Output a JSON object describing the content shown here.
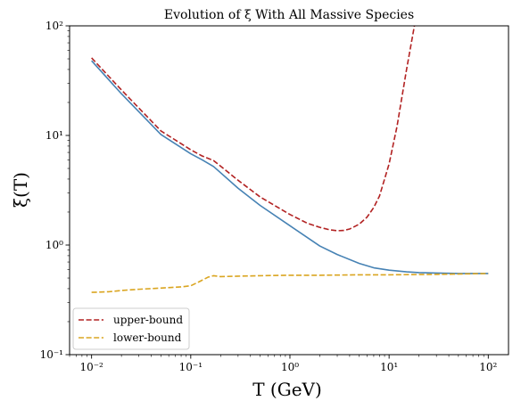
{
  "chart_data": {
    "type": "line",
    "title": "Evolution of ξ With All Massive Species",
    "xlabel": "T (GeV)",
    "ylabel": "ξ(T)",
    "xscale": "log",
    "yscale": "log",
    "xlim": [
      0.006,
      160
    ],
    "ylim": [
      0.1,
      100
    ],
    "x_ticks": [
      0.01,
      0.1,
      1,
      10,
      100
    ],
    "x_tick_labels": [
      "10⁻²",
      "10⁻¹",
      "10⁰",
      "10¹",
      "10²"
    ],
    "y_ticks": [
      0.1,
      1,
      10,
      100
    ],
    "y_tick_labels": [
      "10⁻¹",
      "10⁰",
      "10¹",
      "10²"
    ],
    "legend_position": "lower-left",
    "grid": false,
    "series": [
      {
        "color": "#4682b4",
        "dash": "solid",
        "x": [
          0.01,
          0.02,
          0.05,
          0.1,
          0.13,
          0.17,
          0.3,
          0.5,
          1,
          2,
          3,
          5,
          7,
          10,
          15,
          20,
          30,
          50,
          100
        ],
        "y": [
          48,
          24,
          10.2,
          6.8,
          6.0,
          5.2,
          3.3,
          2.3,
          1.5,
          0.98,
          0.82,
          0.68,
          0.62,
          0.59,
          0.57,
          0.56,
          0.555,
          0.55,
          0.55
        ]
      },
      {
        "name": "upper-bound",
        "color": "#b22222",
        "dash": "dashed",
        "x": [
          0.01,
          0.02,
          0.05,
          0.1,
          0.13,
          0.17,
          0.3,
          0.5,
          1,
          1.5,
          2,
          2.5,
          3,
          3.5,
          4,
          5,
          6,
          7,
          8,
          10,
          12,
          15,
          18
        ],
        "y": [
          51,
          26,
          11,
          7.4,
          6.5,
          5.9,
          3.9,
          2.75,
          1.9,
          1.58,
          1.45,
          1.38,
          1.35,
          1.36,
          1.4,
          1.55,
          1.8,
          2.2,
          2.8,
          5.5,
          12,
          40,
          100
        ]
      },
      {
        "name": "lower-bound",
        "color": "#daa520",
        "dash": "dashed",
        "x": [
          0.01,
          0.015,
          0.02,
          0.03,
          0.05,
          0.08,
          0.1,
          0.12,
          0.15,
          0.17,
          0.2,
          0.3,
          0.5,
          1,
          2,
          5,
          10,
          30,
          100
        ],
        "y": [
          0.37,
          0.375,
          0.385,
          0.395,
          0.405,
          0.415,
          0.425,
          0.46,
          0.51,
          0.525,
          0.515,
          0.52,
          0.525,
          0.53,
          0.53,
          0.535,
          0.535,
          0.54,
          0.55
        ]
      }
    ]
  }
}
